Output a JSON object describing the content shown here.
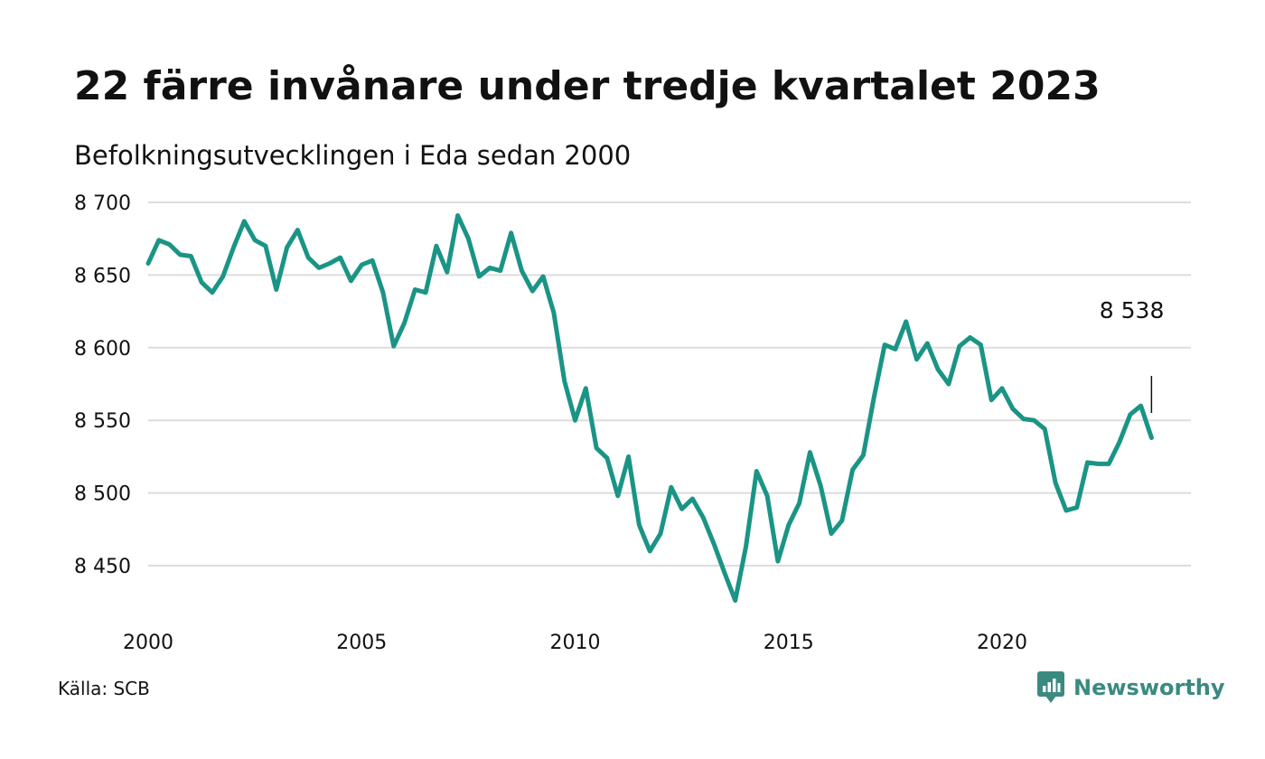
{
  "title": "22 färre invånare under tredje kvartalet 2023",
  "subtitle": "Befolkningsutvecklingen i Eda sedan 2000",
  "source": "Källa: SCB",
  "brand": {
    "name": "Newsworthy",
    "icon": "bar-chart-logo-icon",
    "color": "#3a8a80"
  },
  "colors": {
    "line": "#1a9485",
    "grid": "#dddddd",
    "text": "#111111"
  },
  "chart_data": {
    "type": "line",
    "title": "22 färre invånare under tredje kvartalet 2023",
    "subtitle": "Befolkningsutvecklingen i Eda sedan 2000",
    "xlabel": "",
    "ylabel": "",
    "ylim": [
      8420,
      8700
    ],
    "xlim": [
      2000,
      2024.5
    ],
    "yticks": [
      8450,
      8500,
      8550,
      8600,
      8650,
      8700
    ],
    "ytick_labels": [
      "8 450",
      "8 500",
      "8 550",
      "8 600",
      "8 650",
      "8 700"
    ],
    "xticks": [
      2000,
      2005,
      2010,
      2015,
      2020
    ],
    "xtick_labels": [
      "2000",
      "2005",
      "2010",
      "2015",
      "2020"
    ],
    "grid": true,
    "legend": "none",
    "annotation": {
      "label": "8 538",
      "value": 8538
    },
    "series": [
      {
        "start_year": 2000,
        "step": 0.25,
        "values": [
          8658,
          8674,
          8671,
          8664,
          8663,
          8645,
          8638,
          8649,
          8669,
          8687,
          8674,
          8670,
          8640,
          8669,
          8681,
          8662,
          8655,
          8658,
          8662,
          8646,
          8657,
          8660,
          8638,
          8601,
          8617,
          8640,
          8638,
          8670,
          8652,
          8691,
          8675,
          8649,
          8655,
          8653,
          8679,
          8653,
          8639,
          8649,
          8624,
          8577,
          8550,
          8572,
          8531,
          8524,
          8498,
          8525,
          8478,
          8460,
          8472,
          8504,
          8489,
          8496,
          8483,
          8465,
          8445,
          8426,
          8463,
          8515,
          8498,
          8453,
          8478,
          8493,
          8528,
          8505,
          8472,
          8481,
          8516,
          8526,
          8566,
          8602,
          8599,
          8618,
          8592,
          8603,
          8585,
          8575,
          8601,
          8607,
          8602,
          8564,
          8572,
          8558,
          8551,
          8550,
          8544,
          8507,
          8488,
          8490,
          8521,
          8520,
          8520,
          8535,
          8554,
          8560,
          8538
        ]
      }
    ]
  }
}
